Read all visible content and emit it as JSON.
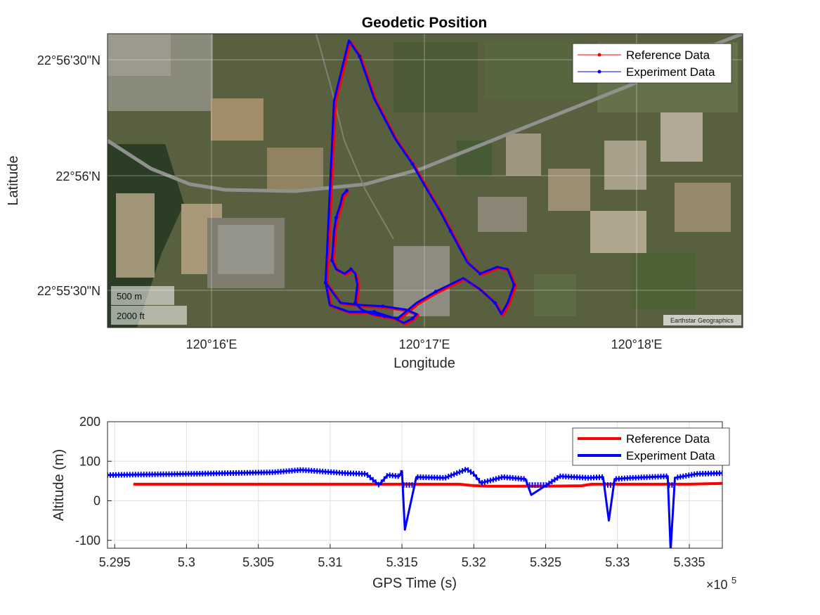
{
  "figure": {
    "map_panel": {
      "title": "Geodetic Position",
      "xlabel": "Longitude",
      "ylabel": "Latitude",
      "x_ticks": [
        "120°16'E",
        "120°17'E",
        "120°18'E"
      ],
      "y_ticks": [
        "22°56'30\"N",
        "22°56'N",
        "22°55'30\"N"
      ],
      "scale_bar": [
        "500 m",
        "2000 ft"
      ],
      "attribution": "Earthstar Geographics",
      "legend": [
        "Reference Data",
        "Experiment Data"
      ]
    },
    "alt_panel": {
      "xlabel": "GPS Time (s)",
      "ylabel": "Altitude (m)",
      "exponent_base": "×10",
      "exponent_power": "5",
      "x_ticks": [
        "5.295",
        "5.3",
        "5.305",
        "5.31",
        "5.315",
        "5.32",
        "5.325",
        "5.33",
        "5.335"
      ],
      "y_ticks": [
        "200",
        "100",
        "0",
        "-100"
      ],
      "legend": [
        "Reference Data",
        "Experiment Data"
      ]
    }
  },
  "colors": {
    "reference": "#ff0000",
    "experiment": "#0000ff",
    "grid": "#dfdfdf",
    "axis": "#262626"
  },
  "chart_data": [
    {
      "type": "line",
      "title": "Geodetic Position",
      "xlabel": "Longitude",
      "ylabel": "Latitude",
      "units": "minutes of arc",
      "x_axis_origin": "120°E",
      "y_axis_origin": "22°N",
      "x_ticks": [
        "120°16'E",
        "120°17'E",
        "120°18'E"
      ],
      "y_ticks": [
        "22°56'30\"N",
        "22°56'N",
        "22°55'30\"N"
      ],
      "xlim": [
        15.5,
        18.5
      ],
      "ylim": [
        55.36,
        56.67
      ],
      "grid": true,
      "legend_location": "top-right",
      "background": "satellite imagery",
      "series": [
        {
          "name": "Reference Data",
          "color": "#ff0000",
          "x": [
            16.63,
            16.61,
            16.6,
            16.58,
            16.57,
            16.565,
            16.56,
            16.58,
            16.62,
            16.65,
            16.67,
            16.68,
            16.67,
            16.7,
            16.75,
            16.81,
            16.87,
            16.96,
            17.05,
            17.18,
            17.26,
            17.33,
            17.36,
            17.39,
            17.42,
            17.39,
            17.34,
            17.26,
            17.2,
            17.16,
            17.12,
            17.07,
            17.0,
            16.94,
            16.86,
            16.76,
            16.69,
            16.64,
            16.57,
            16.53,
            16.6,
            16.7,
            16.8,
            16.91,
            16.96,
            16.94,
            16.9,
            16.86,
            16.76,
            16.64,
            16.55,
            16.53
          ],
          "y": [
            55.97,
            55.95,
            55.91,
            55.85,
            55.79,
            55.72,
            55.66,
            55.62,
            55.6,
            55.62,
            55.6,
            55.55,
            55.47,
            55.44,
            55.42,
            55.41,
            55.4,
            55.47,
            55.52,
            55.58,
            55.53,
            55.47,
            55.42,
            55.47,
            55.55,
            55.62,
            55.63,
            55.6,
            55.65,
            55.72,
            55.79,
            55.88,
            55.99,
            56.09,
            56.2,
            56.38,
            56.57,
            56.64,
            56.37,
            55.56,
            55.47,
            55.46,
            55.455,
            55.44,
            55.42,
            55.4,
            55.38,
            55.4,
            55.43,
            55.43,
            55.46,
            55.56
          ]
        },
        {
          "name": "Experiment Data",
          "color": "#0000ff",
          "x": [
            16.63,
            16.61,
            16.6,
            16.58,
            16.57,
            16.565,
            16.56,
            16.58,
            16.62,
            16.65,
            16.67,
            16.68,
            16.67,
            16.7,
            16.75,
            16.81,
            16.87,
            16.96,
            17.05,
            17.18,
            17.26,
            17.33,
            17.36,
            17.39,
            17.42,
            17.39,
            17.34,
            17.26,
            17.2,
            17.16,
            17.12,
            17.07,
            17.0,
            16.94,
            16.86,
            16.76,
            16.69,
            16.64,
            16.57,
            16.53,
            16.6,
            16.7,
            16.8,
            16.91,
            16.96,
            16.94,
            16.9,
            16.86,
            16.76,
            16.64,
            16.55,
            16.53
          ],
          "y": [
            55.97,
            55.95,
            55.91,
            55.85,
            55.79,
            55.72,
            55.66,
            55.62,
            55.6,
            55.62,
            55.6,
            55.55,
            55.47,
            55.44,
            55.42,
            55.41,
            55.4,
            55.47,
            55.52,
            55.58,
            55.53,
            55.47,
            55.42,
            55.47,
            55.55,
            55.62,
            55.63,
            55.6,
            55.65,
            55.72,
            55.79,
            55.88,
            55.99,
            56.09,
            56.2,
            56.38,
            56.57,
            56.64,
            56.37,
            55.56,
            55.47,
            55.46,
            55.455,
            55.44,
            55.42,
            55.4,
            55.38,
            55.4,
            55.43,
            55.43,
            55.46,
            55.56
          ]
        }
      ]
    },
    {
      "type": "line",
      "xlabel": "GPS Time (s)",
      "ylabel": "Altitude (m)",
      "x_exponent": 5,
      "xlim": [
        5.2945,
        5.3373
      ],
      "ylim": [
        -120,
        200
      ],
      "x_ticks": [
        "5.295",
        "5.3",
        "5.305",
        "5.31",
        "5.315",
        "5.32",
        "5.325",
        "5.33",
        "5.335"
      ],
      "y_ticks": [
        "200",
        "100",
        "0",
        "-100"
      ],
      "grid": true,
      "legend_location": "top-right",
      "series": [
        {
          "name": "Reference Data",
          "color": "#ff0000",
          "x": [
            5.2963,
            5.3,
            5.305,
            5.31,
            5.315,
            5.319,
            5.3198,
            5.321,
            5.325,
            5.3275,
            5.3282,
            5.33,
            5.335,
            5.3373
          ],
          "y": [
            42,
            42,
            42,
            42,
            42,
            42,
            39,
            37,
            37,
            38,
            42,
            42,
            42,
            44
          ]
        },
        {
          "name": "Experiment Data",
          "color": "#0000ff",
          "x": [
            5.2945,
            5.296,
            5.3,
            5.303,
            5.306,
            5.308,
            5.3095,
            5.311,
            5.3125,
            5.3134,
            5.314,
            5.3148,
            5.315,
            5.3152,
            5.316,
            5.318,
            5.3195,
            5.32,
            5.3205,
            5.322,
            5.3236,
            5.324,
            5.326,
            5.328,
            5.329,
            5.3294,
            5.3298,
            5.331,
            5.3335,
            5.3337,
            5.334,
            5.3355,
            5.3373
          ],
          "y": [
            65,
            66,
            68,
            70,
            72,
            78,
            74,
            70,
            68,
            40,
            65,
            62,
            75,
            -73,
            60,
            58,
            80,
            68,
            45,
            60,
            55,
            15,
            62,
            58,
            60,
            -50,
            55,
            58,
            62,
            -125,
            58,
            68,
            70
          ]
        }
      ]
    }
  ]
}
